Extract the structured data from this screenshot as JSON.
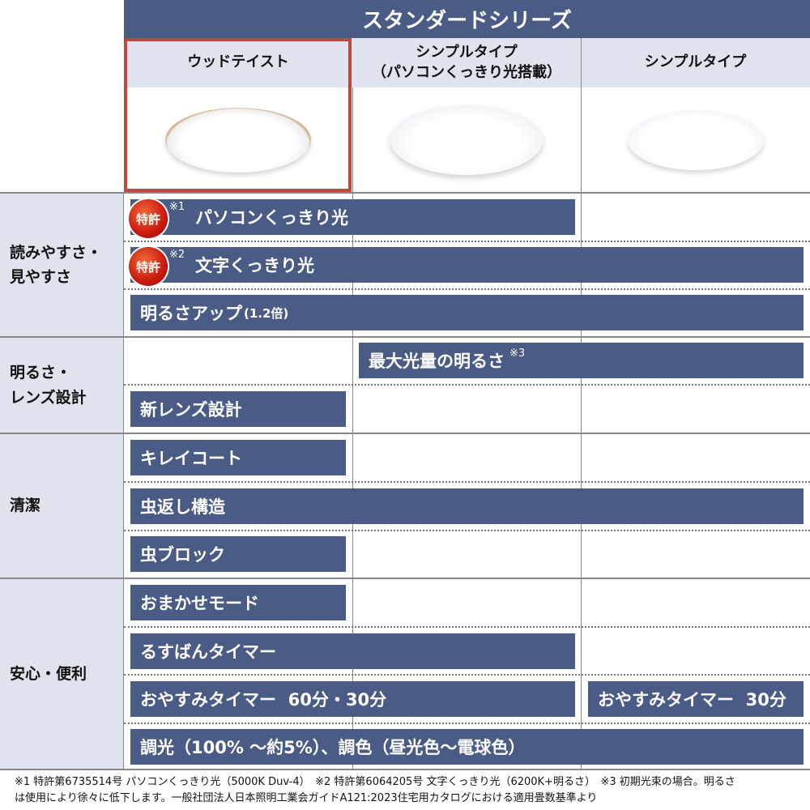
{
  "series_title": "スタンダードシリーズ",
  "columns": [
    {
      "label": "ウッドテイスト",
      "selected": true
    },
    {
      "label_line1": "シンプルタイプ",
      "label_line2": "（パソコンくっきり光搭載）"
    },
    {
      "label": "シンプルタイプ"
    }
  ],
  "groups": [
    {
      "label_line1": "読みやすさ・",
      "label_line2": "見やすさ"
    },
    {
      "label_line1": "明るさ・",
      "label_line2": "レンズ設計"
    },
    {
      "label": "清潔"
    },
    {
      "label": "安心・便利"
    }
  ],
  "features": {
    "pc_light": {
      "text": "パソコンくっきり光",
      "badge": "特許",
      "note": "※1"
    },
    "text_light": {
      "text": "文字くっきり光",
      "badge": "特許",
      "note": "※2"
    },
    "brightness_up": {
      "text": "明るさアップ",
      "sub": "(1.2倍)"
    },
    "max_light": {
      "text": "最大光量の明るさ",
      "note": "※3"
    },
    "new_lens": {
      "text": "新レンズ設計"
    },
    "kirei": {
      "text": "キレイコート"
    },
    "bug_return": {
      "text": "虫返し構造"
    },
    "bug_block": {
      "text": "虫ブロック"
    },
    "omakase": {
      "text": "おまかせモード"
    },
    "rusuban": {
      "text": "るすばんタイマー"
    },
    "oyasumi_60": {
      "text": "おやすみタイマー  60分・30分"
    },
    "oyasumi_30": {
      "text": "おやすみタイマー  30分"
    },
    "dimming": {
      "text": "調光（100% ～約5%）、調色（昼光色～電球色）"
    }
  },
  "footer": {
    "line1": "※1 特許第6735514号 パソコンくっきり光（5000K Duv-4）　※2 特許第6064205号 文字くっきり光（6200K+明るさ）　※3 初期光束の場合。明るさ",
    "line2": "は使用により徐々に低下します。一般社団法人日本照明工業会ガイドA121:2023住宅用カタログにおける適用畳数基準より"
  },
  "colors": {
    "bar": "#4a5b85",
    "header_bg": "#dfe3ee",
    "selected_border": "#c0483e",
    "badge": "#c9190f"
  }
}
